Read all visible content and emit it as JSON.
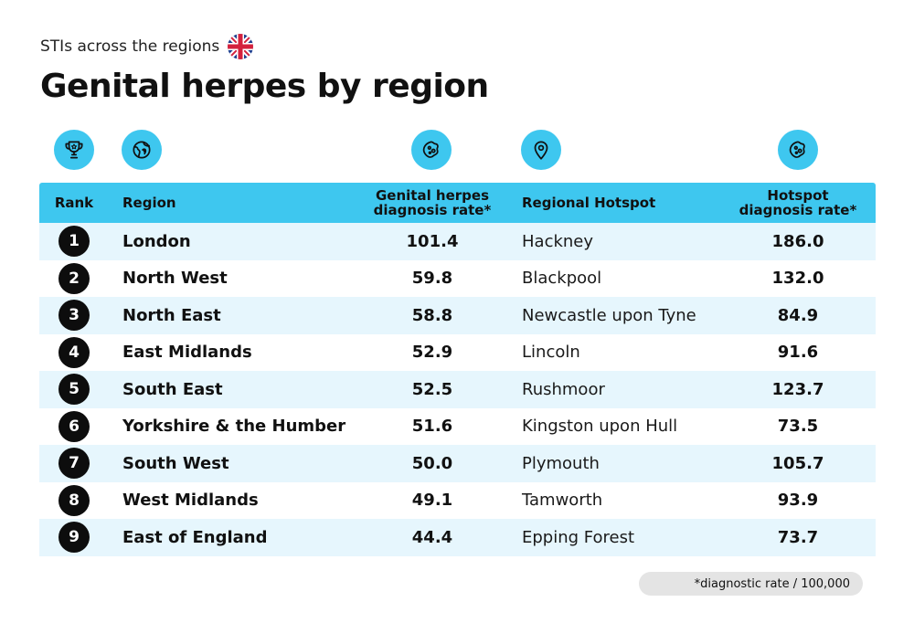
{
  "subtitle": "STIs across the regions",
  "title": "Genital herpes by region",
  "colors": {
    "accent": "#3ec7ef",
    "row_alt": "#e6f6fd",
    "badge": "#0d0d0d"
  },
  "icons": [
    "trophy-icon",
    "globe-icon",
    "virus-icon",
    "location-pin-icon",
    "virus-icon"
  ],
  "headers": {
    "rank": "Rank",
    "region": "Region",
    "rate_line1": "Genital herpes",
    "rate_line2": "diagnosis rate*",
    "hotspot": "Regional Hotspot",
    "hotrate_line1": "Hotspot",
    "hotrate_line2": "diagnosis rate*"
  },
  "rows": [
    {
      "rank": "1",
      "region": "London",
      "rate": "101.4",
      "hotspot": "Hackney",
      "hotspot_rate": "186.0"
    },
    {
      "rank": "2",
      "region": "North West",
      "rate": "59.8",
      "hotspot": "Blackpool",
      "hotspot_rate": "132.0"
    },
    {
      "rank": "3",
      "region": "North East",
      "rate": "58.8",
      "hotspot": "Newcastle upon Tyne",
      "hotspot_rate": "84.9"
    },
    {
      "rank": "4",
      "region": "East Midlands",
      "rate": "52.9",
      "hotspot": "Lincoln",
      "hotspot_rate": "91.6"
    },
    {
      "rank": "5",
      "region": "South East",
      "rate": "52.5",
      "hotspot": "Rushmoor",
      "hotspot_rate": "123.7"
    },
    {
      "rank": "6",
      "region": "Yorkshire & the Humber",
      "rate": "51.6",
      "hotspot": "Kingston upon Hull",
      "hotspot_rate": "73.5"
    },
    {
      "rank": "7",
      "region": "South West",
      "rate": "50.0",
      "hotspot": "Plymouth",
      "hotspot_rate": "105.7"
    },
    {
      "rank": "8",
      "region": "West Midlands",
      "rate": "49.1",
      "hotspot": "Tamworth",
      "hotspot_rate": "93.9"
    },
    {
      "rank": "9",
      "region": "East of England",
      "rate": "44.4",
      "hotspot": "Epping Forest",
      "hotspot_rate": "73.7"
    }
  ],
  "footnote": "*diagnostic rate / 100,000"
}
